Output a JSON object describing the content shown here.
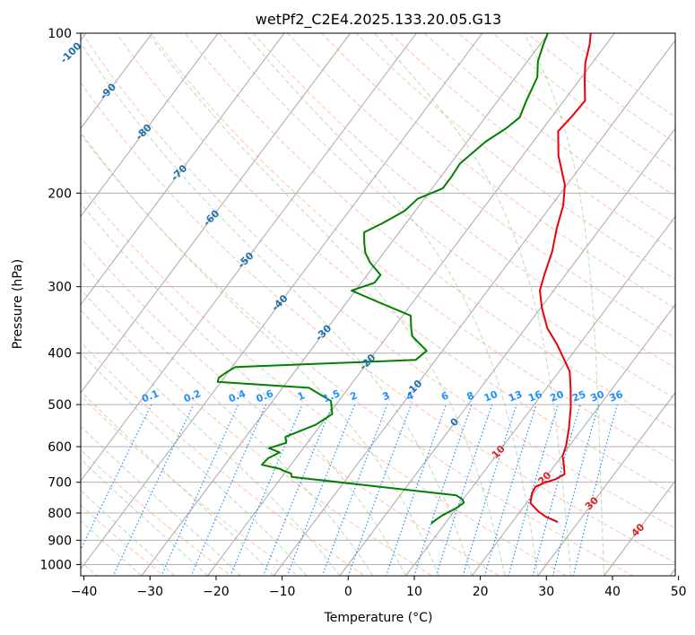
{
  "chart_data": {
    "type": "line",
    "chart_kind": "skew-T log-P diagram",
    "title": "wetPf2_C2E4.2025.133.20.05.G13",
    "xlabel": "Temperature (°C)",
    "ylabel": "Pressure (hPa)",
    "xlim": [
      -40,
      50
    ],
    "ylim": [
      1050,
      100
    ],
    "y_scale": "log",
    "x_ticks": [
      "−40",
      "−30",
      "−20",
      "−10",
      "0",
      "10",
      "20",
      "30",
      "40",
      "50"
    ],
    "y_ticks": [
      100,
      200,
      300,
      400,
      500,
      600,
      700,
      800,
      900,
      1000
    ],
    "grid": true,
    "colors": {
      "temperature": "#e8000b",
      "dewpoint": "#008000",
      "dry_adiabats": "#ff9a76",
      "moist_adiabats": "#7fbf7f",
      "mixing_ratio": "#1e90ff",
      "isotherms": "#808080"
    },
    "series": [
      {
        "role": "temperature",
        "points": [
          [
            26.9,
            832
          ],
          [
            24.5,
            813
          ],
          [
            22.8,
            795
          ],
          [
            20.6,
            766
          ],
          [
            19.7,
            733
          ],
          [
            19.5,
            714
          ],
          [
            20.5,
            701
          ],
          [
            21.7,
            691
          ],
          [
            22.5,
            676
          ],
          [
            21.4,
            651
          ],
          [
            20.1,
            624
          ],
          [
            19.5,
            598
          ],
          [
            17.9,
            553
          ],
          [
            15.8,
            505
          ],
          [
            13.6,
            465
          ],
          [
            11.6,
            433
          ],
          [
            9.5,
            412
          ],
          [
            6.6,
            385
          ],
          [
            3.3,
            359
          ],
          [
            0.2,
            329
          ],
          [
            -2.1,
            305
          ],
          [
            -3.2,
            285
          ],
          [
            -4.7,
            257
          ],
          [
            -6.6,
            233
          ],
          [
            -8.2,
            211
          ],
          [
            -10.3,
            193
          ],
          [
            -14.6,
            170
          ],
          [
            -17.4,
            153
          ],
          [
            -17.0,
            143
          ],
          [
            -16.8,
            134
          ],
          [
            -19.1,
            123
          ],
          [
            -21.0,
            114
          ],
          [
            -22.5,
            105
          ],
          [
            -23.6,
            100
          ]
        ]
      },
      {
        "role": "dewpoint",
        "points": [
          [
            7.9,
            837
          ],
          [
            8.2,
            823
          ],
          [
            8.7,
            807
          ],
          [
            10.0,
            782
          ],
          [
            10.5,
            765
          ],
          [
            9.9,
            754
          ],
          [
            8.5,
            741
          ],
          [
            -18.5,
            684
          ],
          [
            -19.0,
            674
          ],
          [
            -20.6,
            665
          ],
          [
            -21.1,
            661
          ],
          [
            -24.4,
            649
          ],
          [
            -24.2,
            631
          ],
          [
            -23.1,
            615
          ],
          [
            -25.2,
            604
          ],
          [
            -23.2,
            590
          ],
          [
            -24.0,
            575
          ],
          [
            -22.4,
            560
          ],
          [
            -20.8,
            546
          ],
          [
            -19.5,
            521
          ],
          [
            -21.2,
            492
          ],
          [
            -26.0,
            465
          ],
          [
            -40.5,
            453
          ],
          [
            -40.8,
            445
          ],
          [
            -40.2,
            434
          ],
          [
            -39.5,
            425
          ],
          [
            -13.0,
            412
          ],
          [
            -12.4,
            396
          ],
          [
            -16.2,
            372
          ],
          [
            -17.3,
            359
          ],
          [
            -18.8,
            340
          ],
          [
            -25.8,
            319
          ],
          [
            -30.6,
            305
          ],
          [
            -28.0,
            295
          ],
          [
            -28.0,
            285
          ],
          [
            -31.0,
            270
          ],
          [
            -32.8,
            259
          ],
          [
            -34.1,
            248
          ],
          [
            -35.3,
            237
          ],
          [
            -33.6,
            228
          ],
          [
            -31.6,
            216
          ],
          [
            -31.0,
            205
          ],
          [
            -28.4,
            196
          ],
          [
            -28.4,
            186
          ],
          [
            -28.6,
            176
          ],
          [
            -27.2,
            160
          ],
          [
            -25.6,
            151
          ],
          [
            -24.8,
            144
          ],
          [
            -25.6,
            135
          ],
          [
            -26.7,
            121
          ],
          [
            -28.4,
            113
          ],
          [
            -29.5,
            105
          ],
          [
            -30.1,
            100
          ]
        ]
      }
    ],
    "dry_adiabat_labels": [
      "-100",
      "-90",
      "-80",
      "-70",
      "-60",
      "-50",
      "-40",
      "-30",
      "-20",
      "-10",
      "0",
      "10",
      "20",
      "30",
      "40"
    ],
    "mixing_ratio_labels": [
      "0.1",
      "0.2",
      "0.4",
      "0.6",
      "1",
      "1.5",
      "2",
      "3",
      "4",
      "6",
      "8",
      "10",
      "13",
      "16",
      "20",
      "25",
      "30",
      "36"
    ]
  }
}
